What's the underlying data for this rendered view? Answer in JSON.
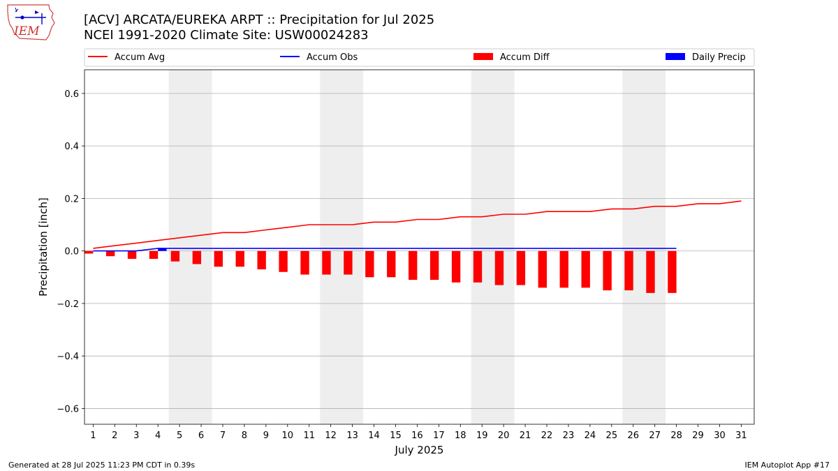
{
  "header": {
    "title_line1": "[ACV] ARCATA/EUREKA ARPT :: Precipitation for Jul 2025",
    "title_line2": "NCEI 1991-2020 Climate Site: USW00024283",
    "logo_text": "IEM"
  },
  "footer": {
    "left": "Generated at 28 Jul 2025 11:23 PM CDT in 0.39s",
    "right": "IEM Autoplot App #17"
  },
  "colors": {
    "accum_avg": "#ff0000",
    "accum_obs": "#0000ff",
    "accum_diff": "#ff0000",
    "daily_precip": "#0000ff",
    "weekend_shade": "#eeeeee",
    "grid": "#b0b0b0"
  },
  "chart_data": {
    "type": "bar",
    "xlabel": "July 2025",
    "ylabel": "Precipitation [inch]",
    "ylim": [
      -0.66,
      0.69
    ],
    "yticks": [
      -0.6,
      -0.4,
      -0.2,
      0.0,
      0.2,
      0.4,
      0.6
    ],
    "ytick_labels": [
      "−0.6",
      "−0.4",
      "−0.2",
      "0.0",
      "0.2",
      "0.4",
      "0.6"
    ],
    "xlim": [
      0.6,
      31.6
    ],
    "days": [
      1,
      2,
      3,
      4,
      5,
      6,
      7,
      8,
      9,
      10,
      11,
      12,
      13,
      14,
      15,
      16,
      17,
      18,
      19,
      20,
      21,
      22,
      23,
      24,
      25,
      26,
      27,
      28,
      29,
      30,
      31
    ],
    "grid": "horizontal",
    "legend_position": "top",
    "weekend_shading": [
      [
        4.5,
        6.5
      ],
      [
        11.5,
        13.5
      ],
      [
        18.5,
        20.5
      ],
      [
        25.5,
        27.5
      ]
    ],
    "series": [
      {
        "name": "Accum Avg",
        "kind": "line",
        "days": [
          1,
          2,
          3,
          4,
          5,
          6,
          7,
          8,
          9,
          10,
          11,
          12,
          13,
          14,
          15,
          16,
          17,
          18,
          19,
          20,
          21,
          22,
          23,
          24,
          25,
          26,
          27,
          28,
          29,
          30,
          31
        ],
        "values": [
          0.01,
          0.02,
          0.03,
          0.04,
          0.05,
          0.06,
          0.07,
          0.07,
          0.08,
          0.09,
          0.1,
          0.1,
          0.1,
          0.11,
          0.11,
          0.12,
          0.12,
          0.13,
          0.13,
          0.14,
          0.14,
          0.15,
          0.15,
          0.15,
          0.16,
          0.16,
          0.17,
          0.17,
          0.18,
          0.18,
          0.19
        ]
      },
      {
        "name": "Accum Obs",
        "kind": "line",
        "days": [
          1,
          2,
          3,
          4,
          5,
          6,
          7,
          8,
          9,
          10,
          11,
          12,
          13,
          14,
          15,
          16,
          17,
          18,
          19,
          20,
          21,
          22,
          23,
          24,
          25,
          26,
          27,
          28
        ],
        "values": [
          0,
          0,
          0,
          0.01,
          0.01,
          0.01,
          0.01,
          0.01,
          0.01,
          0.01,
          0.01,
          0.01,
          0.01,
          0.01,
          0.01,
          0.01,
          0.01,
          0.01,
          0.01,
          0.01,
          0.01,
          0.01,
          0.01,
          0.01,
          0.01,
          0.01,
          0.01,
          0.01
        ]
      },
      {
        "name": "Accum Diff",
        "kind": "bar",
        "days": [
          1,
          2,
          3,
          4,
          5,
          6,
          7,
          8,
          9,
          10,
          11,
          12,
          13,
          14,
          15,
          16,
          17,
          18,
          19,
          20,
          21,
          22,
          23,
          24,
          25,
          26,
          27,
          28
        ],
        "values": [
          -0.01,
          -0.02,
          -0.03,
          -0.03,
          -0.04,
          -0.05,
          -0.06,
          -0.06,
          -0.07,
          -0.08,
          -0.09,
          -0.09,
          -0.09,
          -0.1,
          -0.1,
          -0.11,
          -0.11,
          -0.12,
          -0.12,
          -0.13,
          -0.13,
          -0.14,
          -0.14,
          -0.14,
          -0.15,
          -0.15,
          -0.16,
          -0.16
        ]
      },
      {
        "name": "Daily Precip",
        "kind": "bar",
        "days": [
          1,
          2,
          3,
          4,
          5,
          6,
          7,
          8,
          9,
          10,
          11,
          12,
          13,
          14,
          15,
          16,
          17,
          18,
          19,
          20,
          21,
          22,
          23,
          24,
          25,
          26,
          27,
          28
        ],
        "values": [
          0,
          0,
          0,
          0.01,
          0,
          0,
          0,
          0,
          0,
          0,
          0,
          0,
          0,
          0,
          0,
          0,
          0,
          0,
          0,
          0,
          0,
          0,
          0,
          0,
          0,
          0,
          0,
          0
        ]
      }
    ]
  }
}
